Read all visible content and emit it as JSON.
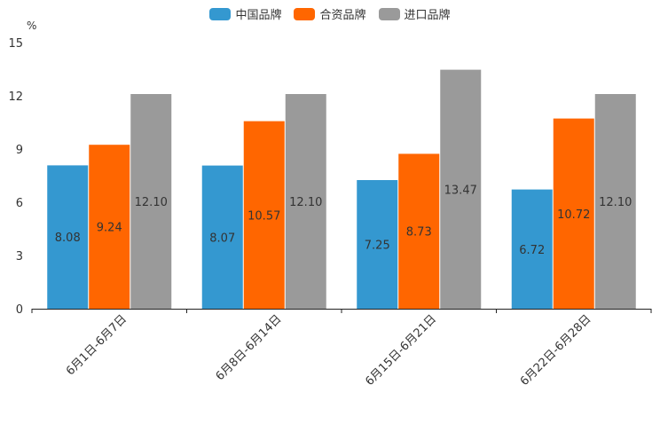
{
  "chart_data": {
    "type": "bar",
    "unit_label": "%",
    "categories": [
      "6月1日-6月7日",
      "6月8日-6月14日",
      "6月15日-6月21日",
      "6月22日-6月28日"
    ],
    "series": [
      {
        "name": "中国品牌",
        "color": "#3498d0",
        "values": [
          8.08,
          8.07,
          7.25,
          6.72
        ],
        "labels": [
          "8.08",
          "8.07",
          "7.25",
          "6.72"
        ]
      },
      {
        "name": "合资品牌",
        "color": "#ff6600",
        "values": [
          9.24,
          10.57,
          8.73,
          10.72
        ],
        "labels": [
          "9.24",
          "10.57",
          "8.73",
          "10.72"
        ]
      },
      {
        "name": "进口品牌",
        "color": "#9a9a9a",
        "values": [
          12.1,
          12.1,
          13.47,
          12.1
        ],
        "labels": [
          "12.10",
          "12.10",
          "13.47",
          "12.10"
        ]
      }
    ],
    "y_ticks": [
      "0",
      "3",
      "6",
      "9",
      "12",
      "15"
    ],
    "ylim": [
      0,
      15
    ],
    "legend_position": "top-center"
  }
}
